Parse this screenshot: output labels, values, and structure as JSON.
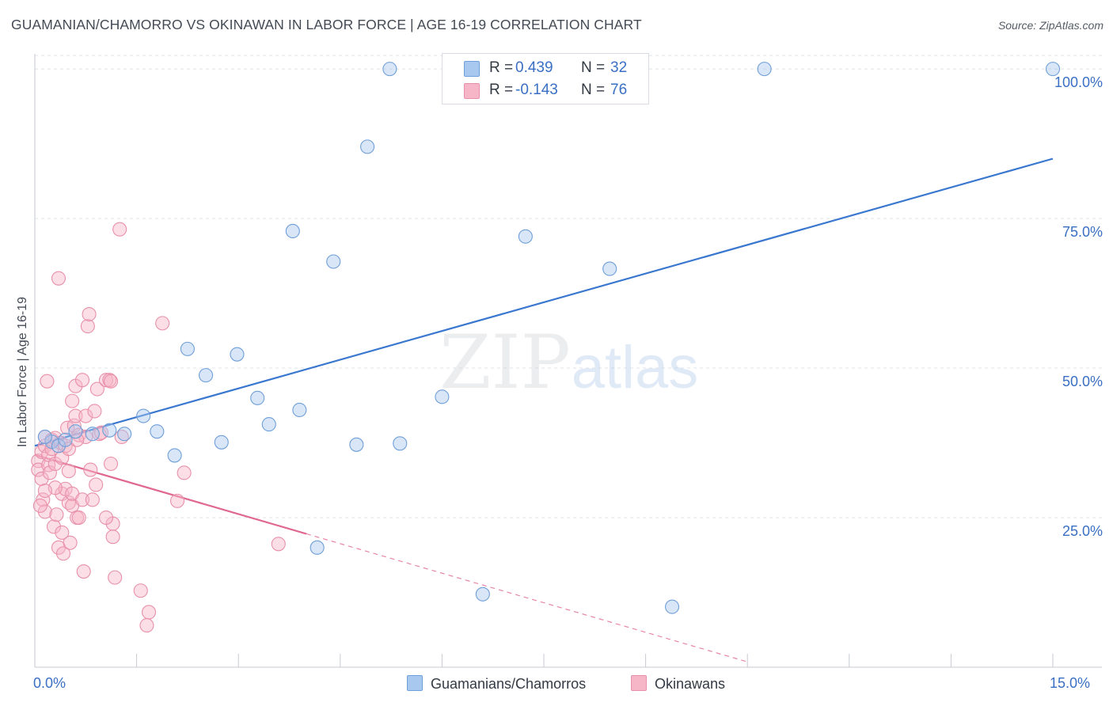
{
  "title": "GUAMANIAN/CHAMORRO VS OKINAWAN IN LABOR FORCE | AGE 16-19 CORRELATION CHART",
  "source": "Source: ZipAtlas.com",
  "watermark": {
    "zip": "ZIP",
    "atlas": "atlas"
  },
  "legend": {
    "rows": [
      {
        "r_label": "R =",
        "r_value": "0.439",
        "n_label": "N =",
        "n_value": "32",
        "color": "#a9c8f0"
      },
      {
        "r_label": "R =",
        "r_value": "-0.143",
        "n_label": "N =",
        "n_value": "76",
        "color": "#f6b6c8"
      }
    ]
  },
  "bottom_legend": [
    {
      "label": "Guamanians/Chamorros",
      "color": "#a9c8f0"
    },
    {
      "label": "Okinawans",
      "color": "#f6b6c8"
    }
  ],
  "x_axis": {
    "min_label": "0.0%",
    "max_label": "15.0%"
  },
  "chart_data": {
    "type": "scatter",
    "title": "GUAMANIAN/CHAMORRO VS OKINAWAN IN LABOR FORCE | AGE 16-19 CORRELATION CHART",
    "xlabel": "",
    "ylabel": "In Labor Force | Age 16-19",
    "xlim": [
      0,
      15
    ],
    "ylim": [
      0,
      102
    ],
    "y_ticks": [
      {
        "value": 25,
        "label": "25.0%"
      },
      {
        "value": 50,
        "label": "50.0%"
      },
      {
        "value": 75,
        "label": "75.0%"
      },
      {
        "value": 100,
        "label": "100.0%"
      }
    ],
    "grid": true,
    "series": [
      {
        "name": "Guamanians/Chamorros",
        "color": "#a9c8f0",
        "edge": "#6f9fd8",
        "trend": {
          "x0": 0.0,
          "y0": 37.0,
          "x1": 15.0,
          "y1": 85.0,
          "color": "#3a78d0"
        },
        "points": [
          [
            0.6,
            39.4
          ],
          [
            0.85,
            39.0
          ],
          [
            1.1,
            39.6
          ],
          [
            1.32,
            39.0
          ],
          [
            1.6,
            42.0
          ],
          [
            1.8,
            39.4
          ],
          [
            2.06,
            35.4
          ],
          [
            2.25,
            53.2
          ],
          [
            2.52,
            48.8
          ],
          [
            2.75,
            37.6
          ],
          [
            2.98,
            52.3
          ],
          [
            3.28,
            45.0
          ],
          [
            3.45,
            40.6
          ],
          [
            3.8,
            72.9
          ],
          [
            3.9,
            43.0
          ],
          [
            4.16,
            20.0
          ],
          [
            4.4,
            67.8
          ],
          [
            4.74,
            37.2
          ],
          [
            4.9,
            87.0
          ],
          [
            5.23,
            100.0
          ],
          [
            5.38,
            37.4
          ],
          [
            6.0,
            45.2
          ],
          [
            6.6,
            12.2
          ],
          [
            7.23,
            72.0
          ],
          [
            8.47,
            66.6
          ],
          [
            9.39,
            10.1
          ],
          [
            10.75,
            100.0
          ],
          [
            15.0,
            100.0
          ],
          [
            0.25,
            37.7
          ],
          [
            0.15,
            38.5
          ],
          [
            0.35,
            37.0
          ],
          [
            0.45,
            38.0
          ]
        ]
      },
      {
        "name": "Okinawans",
        "color": "#f6b6c8",
        "edge": "#e890aa",
        "trend": {
          "x0": 0.0,
          "y0": 35.5,
          "x1": 4.0,
          "y1": 22.3,
          "x_dash_end": 10.5,
          "y_dash_end": 0.9,
          "color": "#e06890"
        },
        "points": [
          [
            0.05,
            34.5
          ],
          [
            0.05,
            33.0
          ],
          [
            0.1,
            36.0
          ],
          [
            0.1,
            31.5
          ],
          [
            0.12,
            28.0
          ],
          [
            0.15,
            37.0
          ],
          [
            0.15,
            38.5
          ],
          [
            0.15,
            26.0
          ],
          [
            0.18,
            47.8
          ],
          [
            0.2,
            33.8
          ],
          [
            0.2,
            35.5
          ],
          [
            0.22,
            32.5
          ],
          [
            0.25,
            36.5
          ],
          [
            0.25,
            38.0
          ],
          [
            0.28,
            23.5
          ],
          [
            0.3,
            34.0
          ],
          [
            0.3,
            38.3
          ],
          [
            0.32,
            25.5
          ],
          [
            0.35,
            65.0
          ],
          [
            0.35,
            20.0
          ],
          [
            0.38,
            37.5
          ],
          [
            0.4,
            35.0
          ],
          [
            0.4,
            29.0
          ],
          [
            0.42,
            19.0
          ],
          [
            0.45,
            37.0
          ],
          [
            0.45,
            29.8
          ],
          [
            0.48,
            40.0
          ],
          [
            0.5,
            36.5
          ],
          [
            0.5,
            27.5
          ],
          [
            0.52,
            20.8
          ],
          [
            0.55,
            44.5
          ],
          [
            0.55,
            27.0
          ],
          [
            0.55,
            29.0
          ],
          [
            0.58,
            40.4
          ],
          [
            0.6,
            47.0
          ],
          [
            0.6,
            42.0
          ],
          [
            0.62,
            25.0
          ],
          [
            0.65,
            25.0
          ],
          [
            0.65,
            38.8
          ],
          [
            0.7,
            48.0
          ],
          [
            0.7,
            28.0
          ],
          [
            0.72,
            16.0
          ],
          [
            0.75,
            42.0
          ],
          [
            0.75,
            38.5
          ],
          [
            0.78,
            57.0
          ],
          [
            0.8,
            59.0
          ],
          [
            0.82,
            33.0
          ],
          [
            0.85,
            28.0
          ],
          [
            0.88,
            42.8
          ],
          [
            0.9,
            30.5
          ],
          [
            0.92,
            46.5
          ],
          [
            0.95,
            39.0
          ],
          [
            0.98,
            39.2
          ],
          [
            1.05,
            48.0
          ],
          [
            1.12,
            34.0
          ],
          [
            1.15,
            24.0
          ],
          [
            1.15,
            21.8
          ],
          [
            1.18,
            15.0
          ],
          [
            1.28,
            38.5
          ],
          [
            1.25,
            73.2
          ],
          [
            1.1,
            48.0
          ],
          [
            1.12,
            47.8
          ],
          [
            1.56,
            12.8
          ],
          [
            1.65,
            7.0
          ],
          [
            1.68,
            9.2
          ],
          [
            1.88,
            57.5
          ],
          [
            2.2,
            32.5
          ],
          [
            2.1,
            27.8
          ],
          [
            3.59,
            20.6
          ],
          [
            1.05,
            25.0
          ],
          [
            0.3,
            30.0
          ],
          [
            0.5,
            32.8
          ],
          [
            0.62,
            38.0
          ],
          [
            0.08,
            27.0
          ],
          [
            0.15,
            29.5
          ],
          [
            0.4,
            22.5
          ]
        ]
      }
    ]
  }
}
